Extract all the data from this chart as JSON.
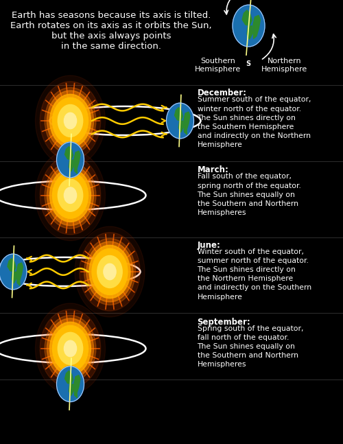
{
  "bg_color": "#000000",
  "text_color": "#ffffff",
  "title_text": "Earth has seasons because its axis is tilted.\nEarth rotates on its axis as it orbits the Sun,\nbut the axis always points\nin the same direction.",
  "southern_label": "Southern\nHemisphere",
  "northern_label": "Northern\nHemisphere",
  "sun_color_inner": "#ffee88",
  "sun_color_mid": "#ffaa00",
  "sun_color_outer": "#ff6600",
  "earth_ocean": "#1a6faf",
  "earth_land": "#2d8a2d",
  "orbit_color": "#ffffff",
  "ray_color": "#ffcc00",
  "axis_color": "#ffff88",
  "december_month": "December:",
  "december_desc": "Summer south of the equator,\nwinter north of the equator.\nThe Sun shines directly on\nthe Southern Hemisphere\nand indirectly on the Northern\nHemisphere",
  "march_month": "March:",
  "march_desc": "Fall south of the equator,\nspring north of the equator.\nThe Sun shines equally on\nthe Southern and Northern\nHemispheres",
  "june_month": "June:",
  "june_desc": "Winter south of the equator,\nsummer north of the equator.\nThe Sun shines directly on\nthe Northern Hemisphere\nand indirectly on the Southern\nHemisphere",
  "september_month": "September:",
  "september_desc": "Spring south of the equator,\nfall north of the equator.\nThe Sun shines equally on\nthe Southern and Northern\nHemispheres"
}
